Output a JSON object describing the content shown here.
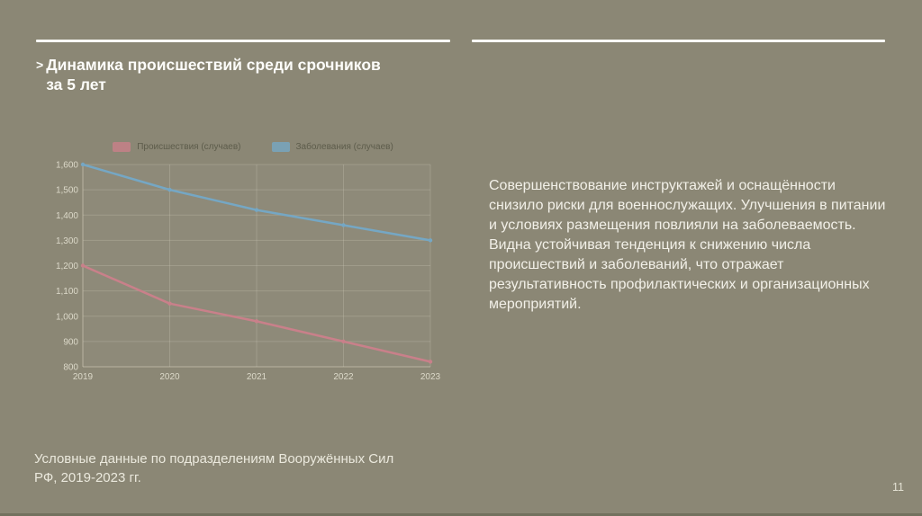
{
  "slide": {
    "title_bullet": ">",
    "title": "Динамика происшествий среди срочников за 5 лет",
    "title_lines": [
      "Динамика происшествий среди срочников",
      "за 5 лет"
    ],
    "paragraphs": [
      "Совершенствование инструктажей и оснащённости снизило риски для военнослужащих. Улучшения в питании и условиях размещения повлияли на заболеваемость.",
      "Видна устойчивая тенденция к снижению числа происшествий и заболеваний, что отражает результативность профилактических и организационных мероприятий."
    ],
    "footer_lines": [
      "Условные данные по подразделениям Вооружённых Сил",
      "РФ, 2019-2023 гг."
    ],
    "page_number": "11"
  },
  "colors": {
    "background": "#8b8775",
    "rule": "#fafaf6",
    "title_text": "#fdfdfa",
    "body_text": "#f2f0e8",
    "tick_text": "#dcd9c9",
    "legend_text": "#5d5c4b",
    "grid": "rgba(210,205,185,0.28)",
    "series_red": "#c9808a",
    "series_blue": "#75a7c4"
  },
  "chart_data": {
    "type": "line",
    "categories": [
      "2019",
      "2020",
      "2021",
      "2022",
      "2023"
    ],
    "series": [
      {
        "name": "Происшествия (случаев)",
        "color": "#c9808a",
        "values": [
          1200,
          1050,
          980,
          900,
          820
        ]
      },
      {
        "name": "Заболевания (случаев)",
        "color": "#75a7c4",
        "values": [
          1600,
          1500,
          1420,
          1360,
          1300
        ]
      }
    ],
    "ylim": [
      800,
      1600
    ],
    "ytick_step": 100,
    "ytick_labels": [
      "800",
      "900",
      "1,000",
      "1,100",
      "1,200",
      "1,300",
      "1,400",
      "1,500",
      "1,600"
    ],
    "xlabel": "",
    "ylabel": "",
    "grid": true,
    "legend_position": "top"
  }
}
